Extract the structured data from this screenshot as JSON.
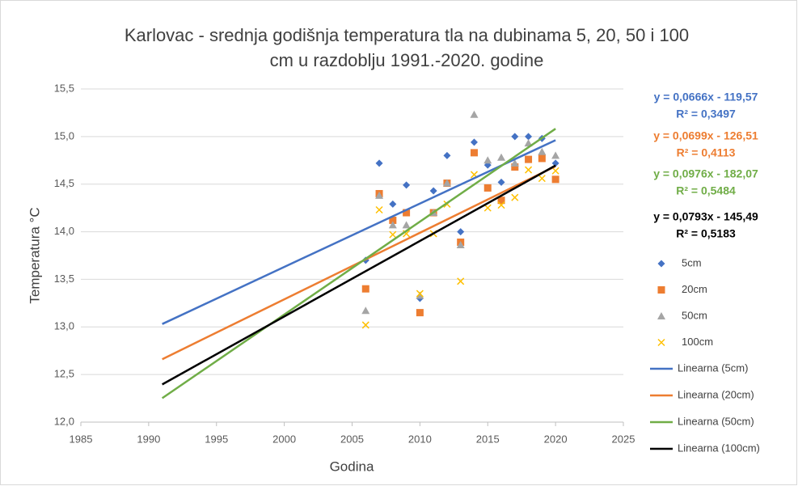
{
  "chart_data": {
    "type": "scatter",
    "title": [
      "Karlovac - srednja godišnja temperatura tla na dubinama 5, 20, 50 i 100",
      "cm u razdoblju 1991.-2020. godine"
    ],
    "x_label": "Godina",
    "y_label": "Temperatura °C",
    "x": [
      2006,
      2007,
      2008,
      2009,
      2010,
      2011,
      2012,
      2013,
      2014,
      2015,
      2016,
      2017,
      2018,
      2019,
      2020
    ],
    "xlim": [
      1985,
      2025
    ],
    "xticks": [
      1985,
      1990,
      1995,
      2000,
      2005,
      2010,
      2015,
      2020,
      2025
    ],
    "ylim": [
      12,
      15.5
    ],
    "yticks": [
      {
        "value": 12,
        "label": "12,0"
      },
      {
        "value": 12.5,
        "label": "12,5"
      },
      {
        "value": 13,
        "label": "13,0"
      },
      {
        "value": 13.5,
        "label": "13,5"
      },
      {
        "value": 14,
        "label": "14,0"
      },
      {
        "value": 14.5,
        "label": "14,5"
      },
      {
        "value": 15,
        "label": "15,0"
      },
      {
        "value": 15.5,
        "label": "15,5"
      }
    ],
    "grid": true,
    "legend": "right",
    "series": [
      {
        "name": "5cm",
        "color": "#4472c4",
        "marker": "diamond",
        "values": [
          13.7,
          14.72,
          14.29,
          14.49,
          13.3,
          14.43,
          14.8,
          14.0,
          14.94,
          14.7,
          14.52,
          15.0,
          15.0,
          14.98,
          14.72
        ]
      },
      {
        "name": "20cm",
        "color": "#ed7d31",
        "marker": "square",
        "values": [
          13.4,
          14.4,
          14.12,
          14.2,
          13.15,
          14.2,
          14.51,
          13.89,
          14.83,
          14.46,
          14.33,
          14.68,
          14.76,
          14.77,
          14.55
        ]
      },
      {
        "name": "50cm",
        "color": "#a5a5a5",
        "marker": "triangle",
        "values": [
          13.17,
          14.38,
          14.07,
          14.07,
          13.33,
          14.2,
          14.51,
          13.86,
          15.23,
          14.75,
          14.78,
          14.72,
          14.93,
          14.84,
          14.8
        ]
      },
      {
        "name": "100cm",
        "color": "#ffc000",
        "marker": "x",
        "values": [
          13.02,
          14.23,
          13.97,
          13.98,
          13.35,
          13.98,
          14.29,
          13.48,
          14.6,
          14.25,
          14.28,
          14.36,
          14.65,
          14.56,
          14.64
        ]
      }
    ],
    "trendlines": [
      {
        "name": "Linearna (5cm)",
        "color": "#4472c4",
        "x": [
          1991,
          2020
        ],
        "slope": 0.0666,
        "intercept": -119.57,
        "equation": "y = 0,0666x - 119,57",
        "r2": "R² = 0,3497"
      },
      {
        "name": "Linearna (20cm)",
        "color": "#ed7d31",
        "x": [
          1991,
          2020
        ],
        "slope": 0.0699,
        "intercept": -126.51,
        "equation": "y = 0,0699x - 126,51",
        "r2": "R² = 0,4113"
      },
      {
        "name": "Linearna (50cm)",
        "color": "#70ad47",
        "x": [
          1991,
          2020
        ],
        "slope": 0.0976,
        "intercept": -182.07,
        "equation": "y = 0,0976x - 182,07",
        "r2": "R² = 0,5484"
      },
      {
        "name": "Linearna (100cm)",
        "color": "#000000",
        "x": [
          1991,
          2020
        ],
        "slope": 0.0793,
        "intercept": -145.49,
        "equation": "y = 0,0793x - 145,49",
        "r2": "R² = 0,5183"
      }
    ]
  }
}
